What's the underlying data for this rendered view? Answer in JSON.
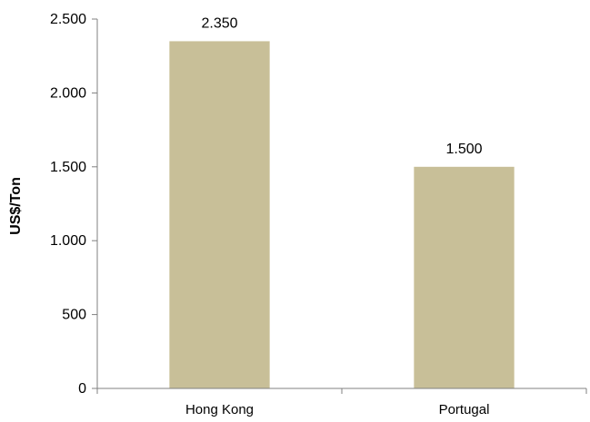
{
  "chart_data": {
    "type": "bar",
    "categories": [
      "Hong Kong",
      "Portugal"
    ],
    "values": [
      2350,
      1500
    ],
    "data_labels": [
      "2.350",
      "1.500"
    ],
    "ylabel": "US$/Ton",
    "xlabel": "",
    "ylim": [
      0,
      2500
    ],
    "yticks": [
      0,
      500,
      1000,
      1500,
      2000,
      2500
    ],
    "ytick_labels": [
      "0",
      "500",
      "1.000",
      "1.500",
      "2.000",
      "2.500"
    ],
    "grid": false,
    "legend": "none",
    "bar_color": "#c8bf98",
    "axis_color": "#808080"
  }
}
